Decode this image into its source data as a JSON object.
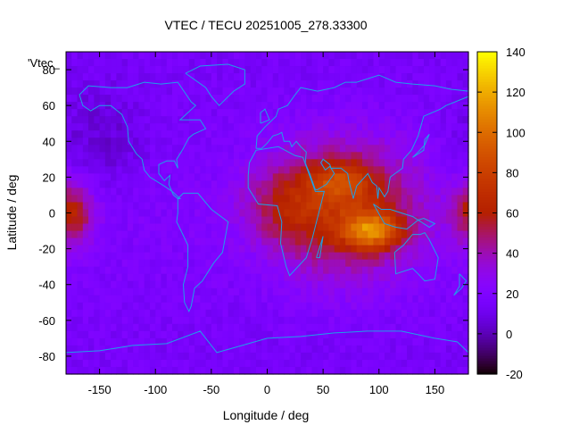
{
  "chart_data": {
    "type": "heatmap",
    "title": "VTEC / TECU 20251005_278.33300",
    "xlabel": "Longitude / deg",
    "ylabel": "Latitude / deg",
    "xlim": [
      -180,
      180
    ],
    "ylim": [
      -90,
      90
    ],
    "x_ticks": [
      -150,
      -100,
      -50,
      0,
      50,
      100,
      150
    ],
    "y_ticks": [
      -80,
      -60,
      -40,
      -20,
      0,
      20,
      40,
      60,
      80
    ],
    "colorbar": {
      "range": [
        -20,
        140
      ],
      "ticks": [
        -20,
        0,
        20,
        40,
        60,
        80,
        100,
        120,
        140
      ],
      "colormap": "black-purple-red-orange-yellow"
    },
    "corner_label": "'Vtec_",
    "overlay": "coastlines",
    "coastline_color": "#1fa0e8",
    "grid": false,
    "field_summary": {
      "background_level": 20,
      "polar_level": 15,
      "peak_value": 135,
      "peak_location": {
        "lon": 95,
        "lat": -10
      },
      "secondary_maxima": [
        {
          "lon": 65,
          "lat": 18,
          "value": 85
        },
        {
          "lon": -170,
          "lat": 0,
          "value": 65
        }
      ]
    }
  }
}
